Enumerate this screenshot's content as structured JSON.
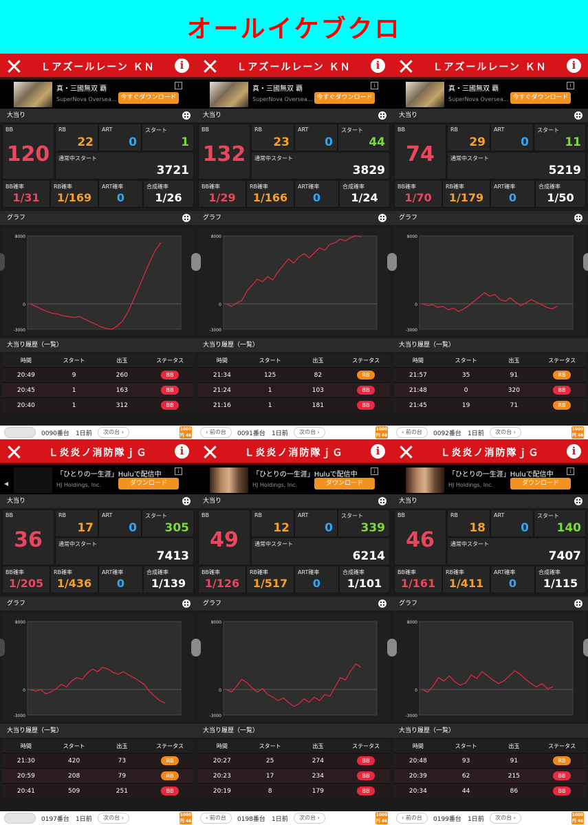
{
  "title": "オールイケブクロ",
  "labels": {
    "section_bonus": "大当り",
    "section_graph": "グラフ",
    "section_history": "大当り履歴（一覧）",
    "bb": "BB",
    "rb": "RB",
    "art": "ART",
    "start": "スタート",
    "normal_start": "通常中スタート",
    "bb_rate": "BB確率",
    "rb_rate": "RB確率",
    "art_rate": "ART確率",
    "total_rate": "合成確率",
    "col_time": "時間",
    "col_start": "スタート",
    "col_out": "出玉",
    "col_status": "ステータス",
    "prev": "前の台",
    "next": "次の台",
    "day": "1日前",
    "y_top": "8000",
    "y_zero": "0",
    "y_bottom": "-3000",
    "logo": "1000円 46玉"
  },
  "colors": {
    "header_red": "#d8141b",
    "bb": "#e8475d",
    "rb": "#f6a02a",
    "art": "#2ea8f4",
    "start": "#7cd83c",
    "banner_bg": "#00ffff",
    "banner_text": "#ff0000"
  },
  "panels": [
    {
      "machine": "Ｌアズールレーン ＫＮ",
      "ad": {
        "title": "真・三國無双 覇",
        "sub": "SuperNova Oversea...",
        "button": "今すぐダウンロード",
        "thumb": "game"
      },
      "bb": "120",
      "rb": "22",
      "art": "0",
      "start": "1",
      "normal_start": "3721",
      "bb_rate": "1/31",
      "rb_rate": "1/169",
      "art_rate": "0",
      "total_rate": "1/26",
      "graph": [
        0,
        -300,
        -600,
        -900,
        -1100,
        -1200,
        -1400,
        -1500,
        -1600,
        -1500,
        -1800,
        -2100,
        -2400,
        -2700,
        -2900,
        -3000,
        -2600,
        -2000,
        -900,
        500,
        2000,
        3500,
        5000,
        6300,
        7200
      ],
      "history": [
        {
          "time": "20:49",
          "start": "9",
          "out": "260",
          "status": "BB"
        },
        {
          "time": "20:45",
          "start": "1",
          "out": "163",
          "status": "BB"
        },
        {
          "time": "20:40",
          "start": "1",
          "out": "312",
          "status": "BB"
        }
      ],
      "number": "0090番台",
      "prev_enabled": false
    },
    {
      "machine": "Ｌアズールレーン ＫＮ",
      "ad": {
        "title": "真・三國無双 覇",
        "sub": "SuperNova Oversea...",
        "button": "今すぐダウンロード",
        "thumb": "game"
      },
      "bb": "132",
      "rb": "23",
      "art": "0",
      "start": "44",
      "normal_start": "3829",
      "bb_rate": "1/29",
      "rb_rate": "1/166",
      "art_rate": "0",
      "total_rate": "1/24",
      "graph": [
        0,
        -300,
        100,
        400,
        1500,
        2200,
        2900,
        2600,
        3200,
        2800,
        3800,
        4500,
        5300,
        4800,
        5500,
        5900,
        5400,
        6000,
        6600,
        6300,
        7000,
        7200,
        7600,
        7400,
        7800,
        8000,
        7900
      ],
      "history": [
        {
          "time": "21:34",
          "start": "125",
          "out": "82",
          "status": "RB"
        },
        {
          "time": "21:24",
          "start": "1",
          "out": "103",
          "status": "BB"
        },
        {
          "time": "21:16",
          "start": "1",
          "out": "181",
          "status": "BB"
        }
      ],
      "number": "0091番台",
      "prev_enabled": true
    },
    {
      "machine": "Ｌアズールレーン ＫＮ",
      "ad": {
        "title": "真・三國無双 覇",
        "sub": "SuperNova Oversea...",
        "button": "今すぐダウンロード",
        "thumb": "game"
      },
      "bb": "74",
      "rb": "29",
      "art": "0",
      "start": "11",
      "normal_start": "5219",
      "bb_rate": "1/70",
      "rb_rate": "1/179",
      "art_rate": "0",
      "total_rate": "1/50",
      "graph": [
        0,
        -200,
        -100,
        -400,
        -300,
        -700,
        -500,
        -900,
        -600,
        -200,
        300,
        800,
        1300,
        900,
        1100,
        500,
        300,
        700,
        200,
        -200,
        100,
        500,
        200,
        -100,
        -400,
        -600,
        -300
      ],
      "history": [
        {
          "time": "21:57",
          "start": "35",
          "out": "91",
          "status": "RB"
        },
        {
          "time": "21:48",
          "start": "0",
          "out": "320",
          "status": "BB"
        },
        {
          "time": "21:45",
          "start": "19",
          "out": "71",
          "status": "RB"
        }
      ],
      "number": "0092番台",
      "prev_enabled": true
    },
    {
      "machine": "Ｌ炎炎ノ消防隊ｊＧ",
      "ad": {
        "title": "「ひとりの一生涯」Huluで配信中",
        "sub": "HJ Holdings, Inc.",
        "button": "ダウンロード",
        "thumb": "dark"
      },
      "bb": "36",
      "rb": "17",
      "art": "0",
      "start": "305",
      "normal_start": "7413",
      "bb_rate": "1/205",
      "rb_rate": "1/436",
      "art_rate": "0",
      "total_rate": "1/139",
      "graph": [
        0,
        -200,
        0,
        -500,
        -300,
        100,
        600,
        300,
        1000,
        1400,
        1200,
        1900,
        2400,
        2100,
        2600,
        2400,
        2000,
        1800,
        2100,
        1700,
        1400,
        1000,
        600,
        -200,
        -800,
        -1300,
        -1600
      ],
      "history": [
        {
          "time": "21:30",
          "start": "420",
          "out": "73",
          "status": "RB"
        },
        {
          "time": "20:59",
          "start": "208",
          "out": "79",
          "status": "RB"
        },
        {
          "time": "20:41",
          "start": "509",
          "out": "251",
          "status": "BB"
        }
      ],
      "number": "0197番台",
      "prev_enabled": false
    },
    {
      "machine": "Ｌ炎炎ノ消防隊ｊＧ",
      "ad": {
        "title": "「ひとりの一生涯」Huluで配信中",
        "sub": "HJ Holdings, Inc.",
        "button": "ダウンロード",
        "thumb": "photo"
      },
      "bb": "49",
      "rb": "12",
      "art": "0",
      "start": "339",
      "normal_start": "6214",
      "bb_rate": "1/126",
      "rb_rate": "1/517",
      "art_rate": "0",
      "total_rate": "1/101",
      "graph": [
        0,
        -300,
        400,
        1200,
        800,
        200,
        -300,
        100,
        -600,
        -900,
        -1300,
        -1000,
        -1500,
        -2000,
        -1700,
        -1100,
        -1500,
        -900,
        -1300,
        -600,
        -800,
        300,
        1400,
        1100,
        2200,
        3000,
        2600
      ],
      "history": [
        {
          "time": "20:27",
          "start": "25",
          "out": "274",
          "status": "BB"
        },
        {
          "time": "20:23",
          "start": "17",
          "out": "234",
          "status": "BB"
        },
        {
          "time": "20:19",
          "start": "8",
          "out": "179",
          "status": "BB"
        }
      ],
      "number": "0198番台",
      "prev_enabled": true
    },
    {
      "machine": "Ｌ炎炎ノ消防隊ｊＧ",
      "ad": {
        "title": "「ひとりの一生涯」Huluで配信中",
        "sub": "HJ Holdings, Inc.",
        "button": "ダウンロード",
        "thumb": "photo"
      },
      "bb": "46",
      "rb": "18",
      "art": "0",
      "start": "140",
      "normal_start": "7407",
      "bb_rate": "1/161",
      "rb_rate": "1/411",
      "art_rate": "0",
      "total_rate": "1/115",
      "graph": [
        0,
        -300,
        400,
        1400,
        1000,
        1600,
        900,
        500,
        800,
        1700,
        1300,
        2100,
        1600,
        1100,
        700,
        1000,
        1600,
        2200,
        1800,
        1200,
        700,
        300,
        700,
        100,
        300
      ],
      "history": [
        {
          "time": "20:48",
          "start": "93",
          "out": "91",
          "status": "RB"
        },
        {
          "time": "20:39",
          "start": "62",
          "out": "215",
          "status": "BB"
        },
        {
          "time": "20:34",
          "start": "44",
          "out": "86",
          "status": "BB"
        }
      ],
      "number": "0199番台",
      "prev_enabled": true
    }
  ]
}
